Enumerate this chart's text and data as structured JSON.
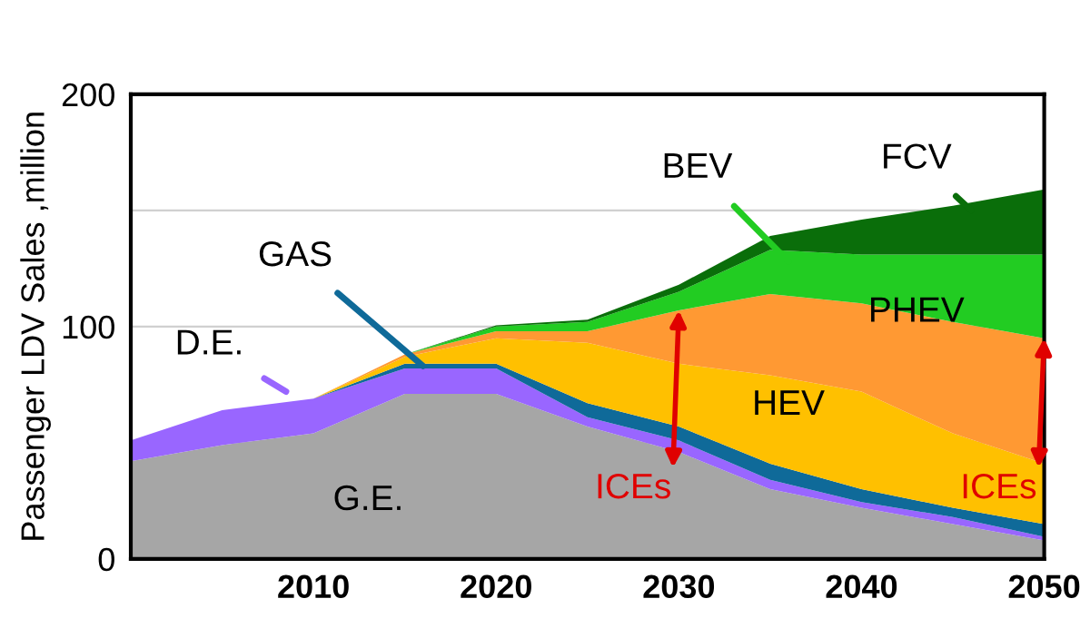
{
  "chart_data": {
    "type": "area",
    "stacked": true,
    "ylabel": "Passenger LDV Sales ,million",
    "x": [
      2000,
      2005,
      2010,
      2015,
      2020,
      2025,
      2030,
      2035,
      2040,
      2045,
      2050
    ],
    "series": [
      {
        "name": "G.E.",
        "color": "#a6a6a6",
        "values": [
          42,
          49,
          54,
          71,
          71,
          57,
          46,
          30,
          22,
          15,
          8
        ]
      },
      {
        "name": "D.E.",
        "color": "#9966ff",
        "values": [
          9,
          15,
          15,
          11,
          11,
          4,
          5,
          4,
          2.5,
          3,
          1.5
        ]
      },
      {
        "name": "GAS",
        "color": "#0f6a99",
        "values": [
          0,
          0,
          0,
          2,
          2,
          6,
          6,
          7,
          5.5,
          4,
          5.5
        ]
      },
      {
        "name": "HEV",
        "color": "#ffc000",
        "values": [
          0,
          0,
          0,
          3,
          11,
          26,
          27,
          38,
          42,
          32,
          26
        ]
      },
      {
        "name": "PHEV",
        "color": "#ff9933",
        "values": [
          0,
          0,
          0,
          1,
          3,
          5,
          23,
          35,
          38,
          48,
          54
        ]
      },
      {
        "name": "BEV",
        "color": "#22cc22",
        "values": [
          0,
          0,
          0,
          0,
          2,
          4,
          8,
          19,
          21,
          29,
          36
        ]
      },
      {
        "name": "FCV",
        "color": "#0a6e0a",
        "values": [
          0,
          0,
          0,
          0,
          0.5,
          1,
          3,
          6,
          15,
          21,
          28
        ]
      }
    ],
    "annotations": [
      {
        "text": "ICEs",
        "x": 2030,
        "y": 107
      },
      {
        "text": "ICEs",
        "x": 2050,
        "y": 95
      }
    ],
    "xlim": [
      2000,
      2050
    ],
    "xticks": [
      2010,
      2020,
      2030,
      2040,
      2050
    ],
    "ylim": [
      0,
      200
    ],
    "yticks": [
      0,
      {
        "value": 50,
        "label": null
      },
      100,
      {
        "value": 150,
        "label": null
      },
      200
    ],
    "grid": "y",
    "legend": false
  }
}
